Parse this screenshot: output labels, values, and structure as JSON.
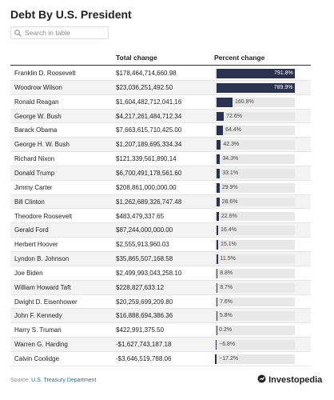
{
  "title": "Debt By U.S. President",
  "search_placeholder": "Search in table",
  "columns": {
    "total_change": "Total change",
    "percent_change": "Percent change"
  },
  "rows": [
    {
      "president": "Franklin D. Roosevelt",
      "total_change": "$178,464,714,660.98",
      "percent_change": 791.8,
      "percent_label": "791.8%"
    },
    {
      "president": "Woodrow Wilson",
      "total_change": "$23,036,251,492.50",
      "percent_change": 789.9,
      "percent_label": "789.9%"
    },
    {
      "president": "Ronald Reagan",
      "total_change": "$1,604,482,712,041.16",
      "percent_change": 160.8,
      "percent_label": "160.8%"
    },
    {
      "president": "George W. Bush",
      "total_change": "$4,217,261,484,712.34",
      "percent_change": 72.6,
      "percent_label": "72.6%"
    },
    {
      "president": "Barack Obama",
      "total_change": "$7,663,615,710,425.00",
      "percent_change": 64.4,
      "percent_label": "64.4%"
    },
    {
      "president": "George H. W. Bush",
      "total_change": "$1,207,189,695,334.34",
      "percent_change": 42.3,
      "percent_label": "42.3%"
    },
    {
      "president": "Richard Nixon",
      "total_change": "$121,339,561,890.14",
      "percent_change": 34.3,
      "percent_label": "34.3%"
    },
    {
      "president": "Donald Trump",
      "total_change": "$6,700,491,178,561.60",
      "percent_change": 33.1,
      "percent_label": "33.1%"
    },
    {
      "president": "Jimmy Carter",
      "total_change": "$208,861,000,000.00",
      "percent_change": 29.9,
      "percent_label": "29.9%"
    },
    {
      "president": "Bill Clinton",
      "total_change": "$1,262,689,326,747.48",
      "percent_change": 28.6,
      "percent_label": "28.6%"
    },
    {
      "president": "Theodore Roosevelt",
      "total_change": "$483,479,337.65",
      "percent_change": 22.6,
      "percent_label": "22.6%"
    },
    {
      "president": "Gerald Ford",
      "total_change": "$87,244,000,000.00",
      "percent_change": 16.4,
      "percent_label": "16.4%"
    },
    {
      "president": "Herbert Hoover",
      "total_change": "$2,555,913,960.03",
      "percent_change": 15.1,
      "percent_label": "15.1%"
    },
    {
      "president": "Lyndon B. Johnson",
      "total_change": "$35,865,507,168.58",
      "percent_change": 11.5,
      "percent_label": "11.5%"
    },
    {
      "president": "Joe Biden",
      "total_change": "$2,499,993,043,258.10",
      "percent_change": 8.8,
      "percent_label": "8.8%"
    },
    {
      "president": "William Howard Taft",
      "total_change": "$228,827,633.12",
      "percent_change": 8.7,
      "percent_label": "8.7%"
    },
    {
      "president": "Dwight D. Eisenhower",
      "total_change": "$20,259,699,209.80",
      "percent_change": 7.6,
      "percent_label": "7.6%"
    },
    {
      "president": "John F. Kennedy",
      "total_change": "$16,888,694,386.36",
      "percent_change": 5.8,
      "percent_label": "5.8%"
    },
    {
      "president": "Harry S. Truman",
      "total_change": "$422,991,375.50",
      "percent_change": 0.2,
      "percent_label": "0.2%"
    },
    {
      "president": "Warren G. Harding",
      "total_change": "-$1,627,743,187.18",
      "percent_change": -6.8,
      "percent_label": "−6.8%"
    },
    {
      "president": "Calvin Coolidge",
      "total_change": "-$3,646,519,788.06",
      "percent_change": -17.2,
      "percent_label": "−17.2%"
    }
  ],
  "source_label": "Source:",
  "source": "U.S. Treasury Department",
  "brand": "Investopedia"
}
